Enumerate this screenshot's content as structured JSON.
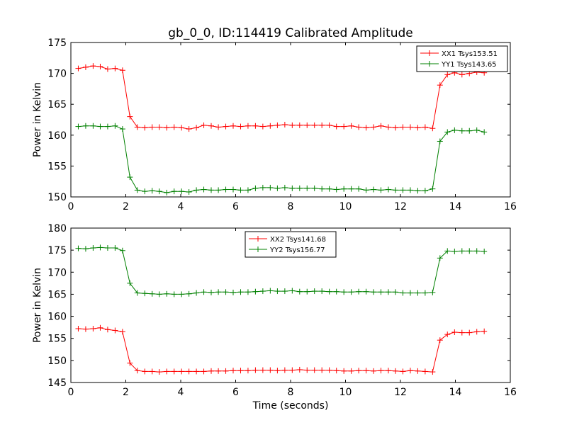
{
  "chart_data": [
    {
      "type": "line",
      "title": "gb_0_0, ID:114419 Calibrated Amplitude",
      "xlabel": "",
      "ylabel": "Power in Kelvin",
      "xlim": [
        0,
        16
      ],
      "ylim": [
        150,
        175
      ],
      "x_ticks": [
        0,
        2,
        4,
        6,
        8,
        10,
        12,
        14,
        16
      ],
      "y_ticks": [
        150,
        155,
        160,
        165,
        170,
        175
      ],
      "legend_position": "upper-right",
      "x": [
        0.27,
        0.54,
        0.81,
        1.07,
        1.34,
        1.61,
        1.88,
        2.15,
        2.42,
        2.69,
        2.96,
        3.22,
        3.49,
        3.76,
        4.03,
        4.3,
        4.57,
        4.84,
        5.11,
        5.37,
        5.64,
        5.91,
        6.18,
        6.45,
        6.72,
        6.99,
        7.26,
        7.52,
        7.79,
        8.06,
        8.33,
        8.6,
        8.87,
        9.14,
        9.41,
        9.67,
        9.94,
        10.21,
        10.48,
        10.75,
        11.02,
        11.29,
        11.56,
        11.82,
        12.09,
        12.36,
        12.63,
        12.9,
        13.17,
        13.44,
        13.71,
        13.97,
        14.24,
        14.51,
        14.78,
        15.05
      ],
      "series": [
        {
          "name": "XX1 Tsys153.51",
          "color": "#ff0000",
          "values": [
            170.8,
            171.0,
            171.2,
            171.1,
            170.7,
            170.8,
            170.5,
            163.0,
            161.3,
            161.2,
            161.3,
            161.3,
            161.2,
            161.3,
            161.2,
            161.0,
            161.2,
            161.6,
            161.5,
            161.3,
            161.4,
            161.5,
            161.4,
            161.5,
            161.5,
            161.4,
            161.5,
            161.6,
            161.7,
            161.6,
            161.6,
            161.6,
            161.6,
            161.6,
            161.6,
            161.4,
            161.4,
            161.5,
            161.3,
            161.2,
            161.3,
            161.5,
            161.3,
            161.2,
            161.3,
            161.3,
            161.2,
            161.3,
            161.1,
            168.1,
            169.8,
            170.1,
            169.8,
            170.0,
            170.2,
            170.1
          ]
        },
        {
          "name": "YY1 Tsys143.65",
          "color": "#008000",
          "values": [
            161.4,
            161.5,
            161.5,
            161.4,
            161.4,
            161.5,
            161.0,
            153.2,
            151.1,
            150.9,
            151.0,
            150.9,
            150.7,
            150.9,
            150.9,
            150.8,
            151.1,
            151.2,
            151.1,
            151.1,
            151.2,
            151.2,
            151.1,
            151.1,
            151.4,
            151.5,
            151.5,
            151.4,
            151.5,
            151.4,
            151.4,
            151.4,
            151.4,
            151.3,
            151.3,
            151.2,
            151.3,
            151.3,
            151.3,
            151.1,
            151.2,
            151.1,
            151.2,
            151.1,
            151.1,
            151.1,
            151.0,
            151.0,
            151.3,
            159.0,
            160.5,
            160.8,
            160.7,
            160.7,
            160.8,
            160.5
          ]
        }
      ]
    },
    {
      "type": "line",
      "title": "",
      "xlabel": "Time (seconds)",
      "ylabel": "Power in Kelvin",
      "xlim": [
        0,
        16
      ],
      "ylim": [
        145,
        180
      ],
      "x_ticks": [
        0,
        2,
        4,
        6,
        8,
        10,
        12,
        14,
        16
      ],
      "y_ticks": [
        145,
        150,
        155,
        160,
        165,
        170,
        175,
        180
      ],
      "legend_position": "upper-center",
      "x": [
        0.27,
        0.54,
        0.81,
        1.07,
        1.34,
        1.61,
        1.88,
        2.15,
        2.42,
        2.69,
        2.96,
        3.22,
        3.49,
        3.76,
        4.03,
        4.3,
        4.57,
        4.84,
        5.11,
        5.37,
        5.64,
        5.91,
        6.18,
        6.45,
        6.72,
        6.99,
        7.26,
        7.52,
        7.79,
        8.06,
        8.33,
        8.6,
        8.87,
        9.14,
        9.41,
        9.67,
        9.94,
        10.21,
        10.48,
        10.75,
        11.02,
        11.29,
        11.56,
        11.82,
        12.09,
        12.36,
        12.63,
        12.9,
        13.17,
        13.44,
        13.71,
        13.97,
        14.24,
        14.51,
        14.78,
        15.05
      ],
      "series": [
        {
          "name": "XX2 Tsys141.68",
          "color": "#ff0000",
          "values": [
            157.2,
            157.1,
            157.2,
            157.4,
            157.0,
            156.8,
            156.5,
            149.4,
            147.7,
            147.5,
            147.5,
            147.4,
            147.5,
            147.5,
            147.5,
            147.5,
            147.5,
            147.5,
            147.6,
            147.6,
            147.6,
            147.7,
            147.7,
            147.7,
            147.8,
            147.8,
            147.8,
            147.7,
            147.8,
            147.8,
            147.9,
            147.8,
            147.8,
            147.8,
            147.8,
            147.7,
            147.6,
            147.6,
            147.7,
            147.7,
            147.6,
            147.7,
            147.7,
            147.6,
            147.5,
            147.7,
            147.6,
            147.5,
            147.4,
            154.6,
            155.9,
            156.4,
            156.3,
            156.3,
            156.5,
            156.6
          ]
        },
        {
          "name": "YY2 Tsys156.77",
          "color": "#008000",
          "values": [
            175.4,
            175.3,
            175.5,
            175.6,
            175.5,
            175.5,
            174.9,
            167.5,
            165.3,
            165.2,
            165.1,
            165.0,
            165.1,
            165.0,
            165.0,
            165.1,
            165.3,
            165.5,
            165.4,
            165.5,
            165.5,
            165.4,
            165.5,
            165.5,
            165.6,
            165.7,
            165.8,
            165.7,
            165.7,
            165.8,
            165.6,
            165.6,
            165.7,
            165.7,
            165.6,
            165.6,
            165.5,
            165.5,
            165.6,
            165.6,
            165.5,
            165.5,
            165.5,
            165.5,
            165.3,
            165.3,
            165.3,
            165.3,
            165.4,
            173.2,
            174.8,
            174.7,
            174.8,
            174.8,
            174.8,
            174.7
          ]
        }
      ]
    }
  ]
}
